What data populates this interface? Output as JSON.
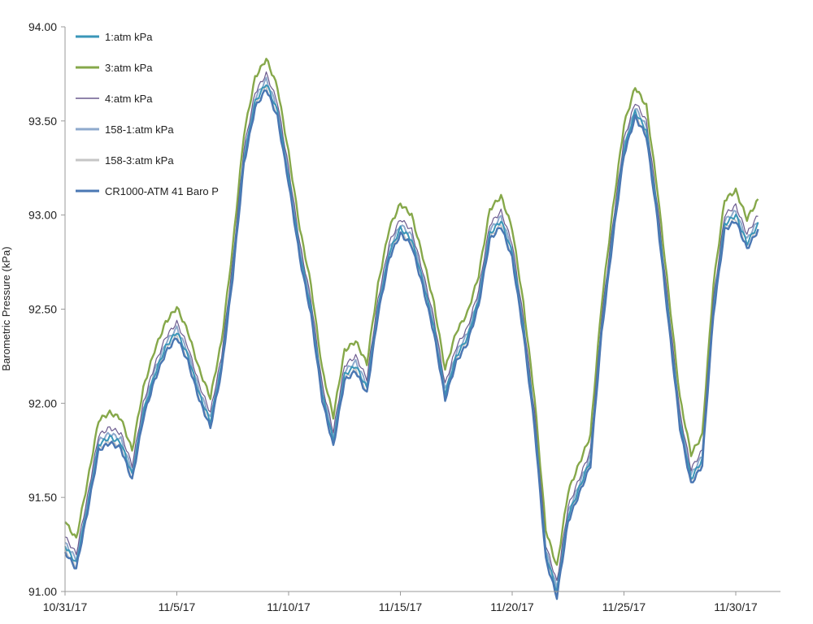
{
  "chart_data": {
    "type": "line",
    "title": "",
    "xlabel": "",
    "ylabel": "Barometric Pressure (kPa)",
    "x_ticks": [
      "10/31/17",
      "11/5/17",
      "11/10/17",
      "11/15/17",
      "11/20/17",
      "11/25/17",
      "11/30/17"
    ],
    "y_ticks": [
      "91.00",
      "91.50",
      "92.00",
      "92.50",
      "93.00",
      "93.50",
      "94.00"
    ],
    "xlim": [
      "10/31/17",
      "12/2/17"
    ],
    "ylim": [
      91.0,
      94.0
    ],
    "grid": false,
    "legend_position": "top-left",
    "base_series": {
      "x": [
        "10/31/17 00:00",
        "10/31/17 12:00",
        "11/1/17 00:00",
        "11/1/17 12:00",
        "11/2/17 00:00",
        "11/2/17 12:00",
        "11/3/17 00:00",
        "11/3/17 12:00",
        "11/4/17 00:00",
        "11/4/17 12:00",
        "11/5/17 00:00",
        "11/5/17 12:00",
        "11/6/17 00:00",
        "11/6/17 12:00",
        "11/7/17 00:00",
        "11/7/17 12:00",
        "11/8/17 00:00",
        "11/8/17 12:00",
        "11/9/17 00:00",
        "11/9/17 12:00",
        "11/10/17 00:00",
        "11/10/17 12:00",
        "11/11/17 00:00",
        "11/11/17 12:00",
        "11/12/17 00:00",
        "11/12/17 12:00",
        "11/13/17 00:00",
        "11/13/17 12:00",
        "11/14/17 00:00",
        "11/14/17 12:00",
        "11/15/17 00:00",
        "11/15/17 12:00",
        "11/16/17 00:00",
        "11/16/17 12:00",
        "11/17/17 00:00",
        "11/17/17 12:00",
        "11/18/17 00:00",
        "11/18/17 12:00",
        "11/19/17 00:00",
        "11/19/17 12:00",
        "11/20/17 00:00",
        "11/20/17 12:00",
        "11/21/17 00:00",
        "11/21/17 12:00",
        "11/22/17 00:00",
        "11/22/17 12:00",
        "11/23/17 00:00",
        "11/23/17 12:00",
        "11/24/17 00:00",
        "11/24/17 12:00",
        "11/25/17 00:00",
        "11/25/17 12:00",
        "11/26/17 00:00",
        "11/26/17 12:00",
        "11/27/17 00:00",
        "11/27/17 12:00",
        "11/28/17 00:00",
        "11/28/17 12:00",
        "11/29/17 00:00",
        "11/29/17 12:00",
        "11/30/17 00:00",
        "11/30/17 12:00",
        "12/1/17 00:00"
      ],
      "y": [
        91.24,
        91.15,
        91.45,
        91.78,
        91.82,
        91.79,
        91.62,
        91.95,
        92.15,
        92.3,
        92.38,
        92.25,
        92.05,
        91.9,
        92.2,
        92.7,
        93.3,
        93.6,
        93.7,
        93.55,
        93.2,
        92.8,
        92.5,
        92.05,
        91.8,
        92.15,
        92.2,
        92.08,
        92.5,
        92.8,
        92.93,
        92.87,
        92.65,
        92.4,
        92.05,
        92.25,
        92.35,
        92.55,
        92.9,
        92.97,
        92.8,
        92.4,
        91.9,
        91.2,
        91.0,
        91.4,
        91.55,
        91.7,
        92.4,
        92.9,
        93.35,
        93.55,
        93.45,
        93.0,
        92.45,
        91.9,
        91.6,
        91.7,
        92.5,
        92.95,
        93.0,
        92.85,
        92.95
      ]
    },
    "series": [
      {
        "name": "1:atm kPa",
        "offset": 0.0,
        "color": "#3a96b8"
      },
      {
        "name": "3:atm kPa",
        "offset": 0.13,
        "color": "#86a84a"
      },
      {
        "name": "4:atm kPa",
        "offset": 0.05,
        "color": "#6c5b8f"
      },
      {
        "name": "158-1:atm kPa",
        "offset": 0.02,
        "color": "#8eaacd"
      },
      {
        "name": "158-3:atm kPa",
        "offset": -0.02,
        "color": "#c6c6c6"
      },
      {
        "name": "CR1000-ATM 41 Baro P",
        "offset": -0.03,
        "color": "#4a77b3"
      }
    ]
  }
}
